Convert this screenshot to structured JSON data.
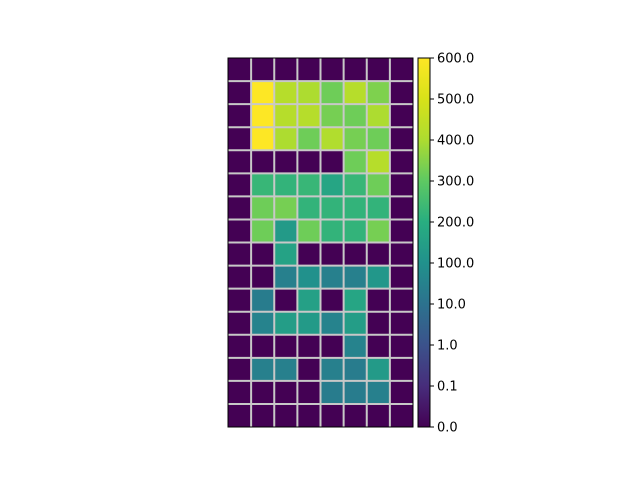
{
  "chart_data": {
    "type": "heatmap",
    "title": "",
    "xlabel": "",
    "ylabel": "",
    "n_rows": 16,
    "n_cols": 8,
    "grid": true,
    "colormap": "viridis",
    "colorbar": {
      "placement": "right",
      "tick_labels": [
        "0.0",
        "0.1",
        "1.0",
        "10.0",
        "100.0",
        "200.0",
        "300.0",
        "400.0",
        "500.0",
        "600.0"
      ]
    },
    "values": [
      [
        0,
        0,
        0,
        0,
        0,
        0,
        0,
        0
      ],
      [
        0,
        600,
        420,
        400,
        320,
        420,
        340,
        0
      ],
      [
        0,
        600,
        420,
        420,
        330,
        320,
        400,
        0
      ],
      [
        0,
        600,
        400,
        320,
        410,
        330,
        320,
        0
      ],
      [
        0,
        0,
        0,
        0,
        0,
        320,
        420,
        0
      ],
      [
        0,
        230,
        220,
        230,
        170,
        230,
        320,
        0
      ],
      [
        0,
        320,
        330,
        220,
        220,
        220,
        220,
        0
      ],
      [
        0,
        320,
        130,
        320,
        220,
        220,
        330,
        0
      ],
      [
        0,
        0,
        160,
        0,
        0,
        0,
        0,
        0
      ],
      [
        0,
        0,
        50,
        100,
        50,
        50,
        120,
        0
      ],
      [
        0,
        40,
        0,
        150,
        0,
        170,
        0,
        0
      ],
      [
        0,
        60,
        140,
        130,
        60,
        140,
        0,
        0
      ],
      [
        0,
        0,
        0,
        0,
        0,
        60,
        0,
        0
      ],
      [
        0,
        50,
        50,
        0,
        50,
        40,
        130,
        0
      ],
      [
        0,
        0,
        0,
        0,
        40,
        40,
        50,
        0
      ],
      [
        0,
        0,
        0,
        0,
        0,
        0,
        0,
        0
      ]
    ]
  }
}
